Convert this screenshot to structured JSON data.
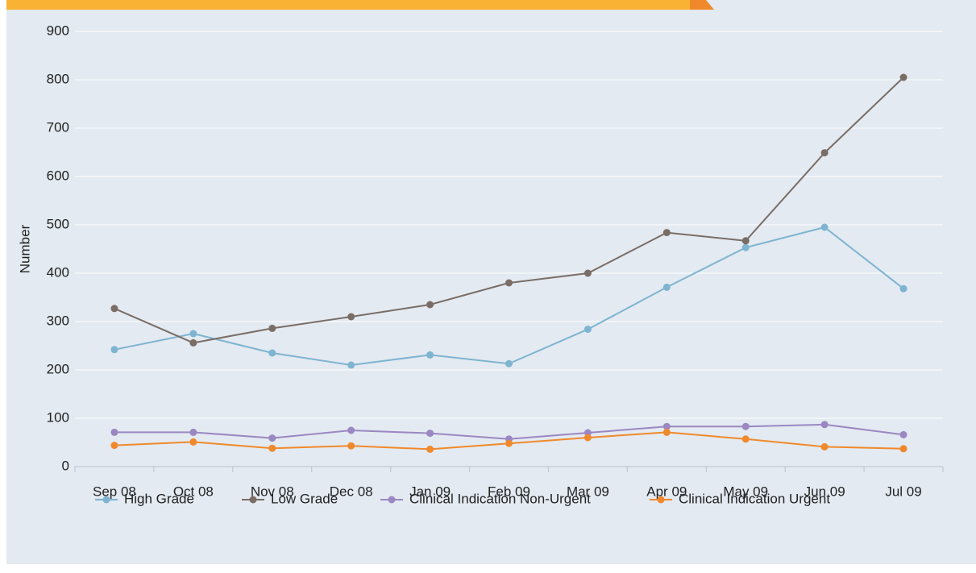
{
  "chart_data": {
    "type": "line",
    "y_label": "Number",
    "categories": [
      "Sep 08",
      "Oct 08",
      "Nov 08",
      "Dec 08",
      "Jan 09",
      "Feb 09",
      "Mar 09",
      "Apr 09",
      "May 09",
      "Jun 09",
      "Jul 09"
    ],
    "series": [
      {
        "name": "High Grade",
        "color": "#7eb4d0",
        "values": [
          242,
          275,
          235,
          210,
          231,
          213,
          284,
          371,
          453,
          495,
          368
        ]
      },
      {
        "name": "Low Grade",
        "color": "#7a6d66",
        "values": [
          327,
          256,
          286,
          310,
          335,
          380,
          400,
          484,
          467,
          649,
          805
        ]
      },
      {
        "name": "Clinical Indication Non-Urgent",
        "color": "#9b87c2",
        "values": [
          71,
          71,
          59,
          75,
          69,
          57,
          70,
          83,
          83,
          87,
          66
        ]
      },
      {
        "name": "Clinical Indication Urgent",
        "color": "#f0892b",
        "values": [
          44,
          51,
          38,
          43,
          36,
          48,
          60,
          71,
          57,
          41,
          37
        ]
      }
    ],
    "ylim": [
      0,
      900
    ],
    "yticks": [
      0,
      100,
      200,
      300,
      400,
      500,
      600,
      700,
      800,
      900
    ],
    "grid": true
  }
}
